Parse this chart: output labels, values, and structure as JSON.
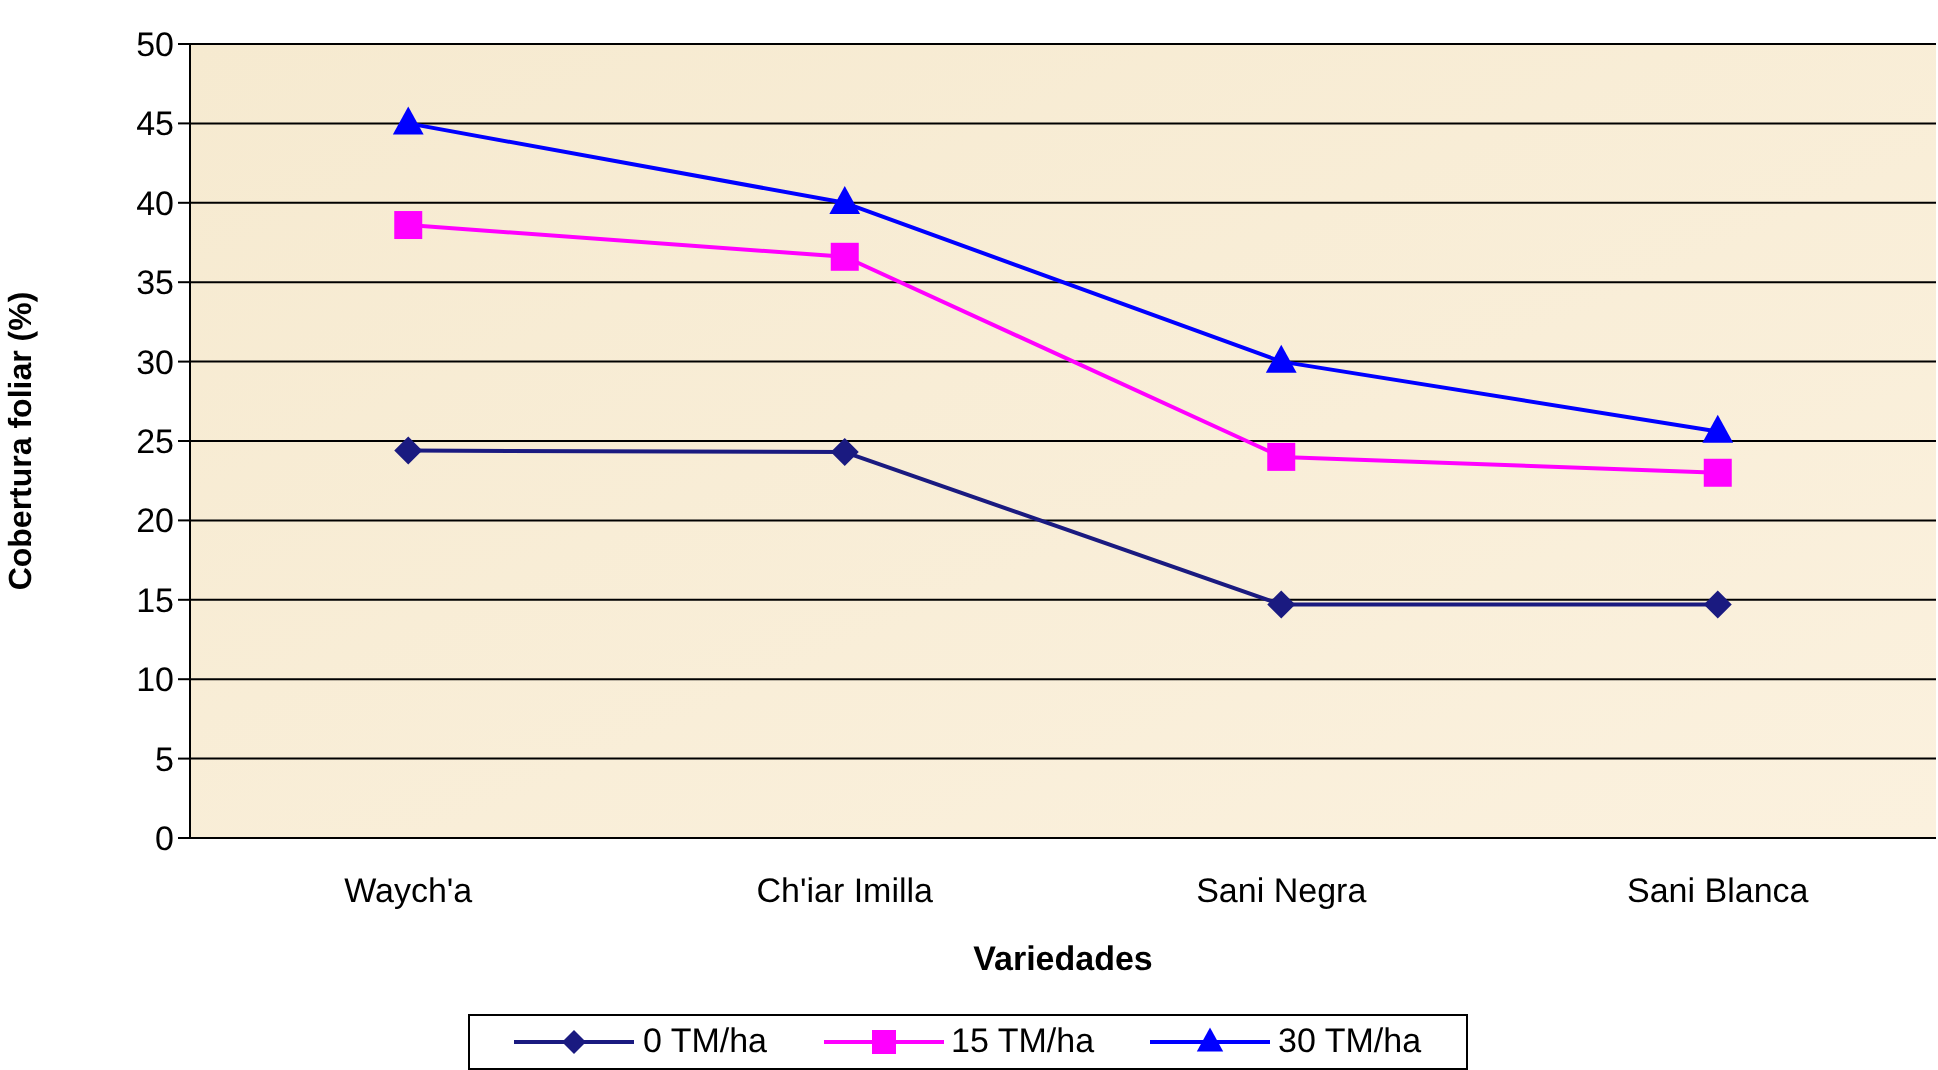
{
  "chart_data": {
    "type": "line",
    "xlabel": "Variedades",
    "ylabel": "Cobertura foliar  (%)",
    "categories": [
      "Waych'a",
      "Ch'iar Imilla",
      "Sani Negra",
      "Sani Blanca"
    ],
    "series": [
      {
        "name": "0 TM/ha",
        "color": "#1a1a80",
        "marker": "diamond",
        "values": [
          24.4,
          24.3,
          14.7,
          14.7
        ]
      },
      {
        "name": "15 TM/ha",
        "color": "#ff00ff",
        "marker": "square",
        "values": [
          38.6,
          36.6,
          24,
          23
        ]
      },
      {
        "name": "30 TM/ha",
        "color": "#0000ff",
        "marker": "triangle",
        "values": [
          45,
          40,
          30,
          25.6
        ]
      }
    ],
    "ylim": [
      0,
      50
    ],
    "yticks": [
      0,
      5,
      10,
      15,
      20,
      25,
      30,
      35,
      40,
      45,
      50
    ],
    "grid": "y",
    "legend": "bottom",
    "line_style": "solid"
  }
}
